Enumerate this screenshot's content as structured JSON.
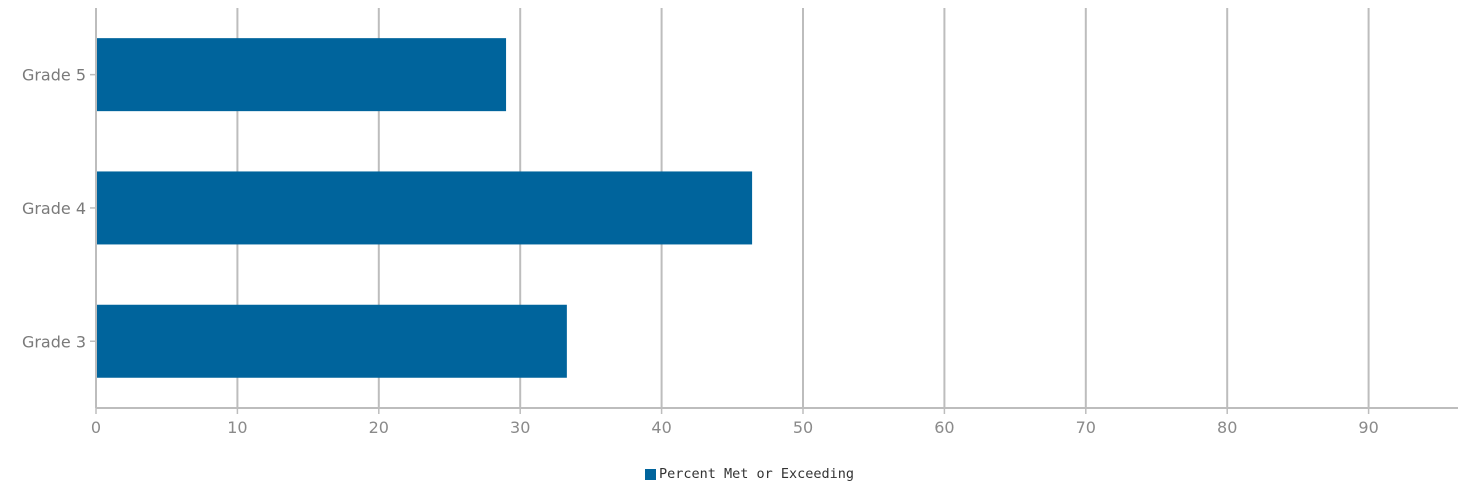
{
  "chart_data": {
    "type": "bar",
    "orientation": "horizontal",
    "categories": [
      "Grade 5",
      "Grade 4",
      "Grade 3"
    ],
    "series": [
      {
        "name": "Percent Met or Exceeding",
        "values": [
          29,
          46.4,
          33.3
        ],
        "color": "#00649c"
      }
    ],
    "title": "",
    "xlabel": "",
    "ylabel": "",
    "xlim": [
      0,
      96
    ],
    "xticks": [
      0,
      10,
      20,
      30,
      40,
      50,
      60,
      70,
      80,
      90
    ],
    "grid": true,
    "legend_position": "bottom-center"
  },
  "colors": {
    "bar": "#00649c",
    "grid": "#bdbdbd",
    "axis": "#bdbdbd"
  }
}
